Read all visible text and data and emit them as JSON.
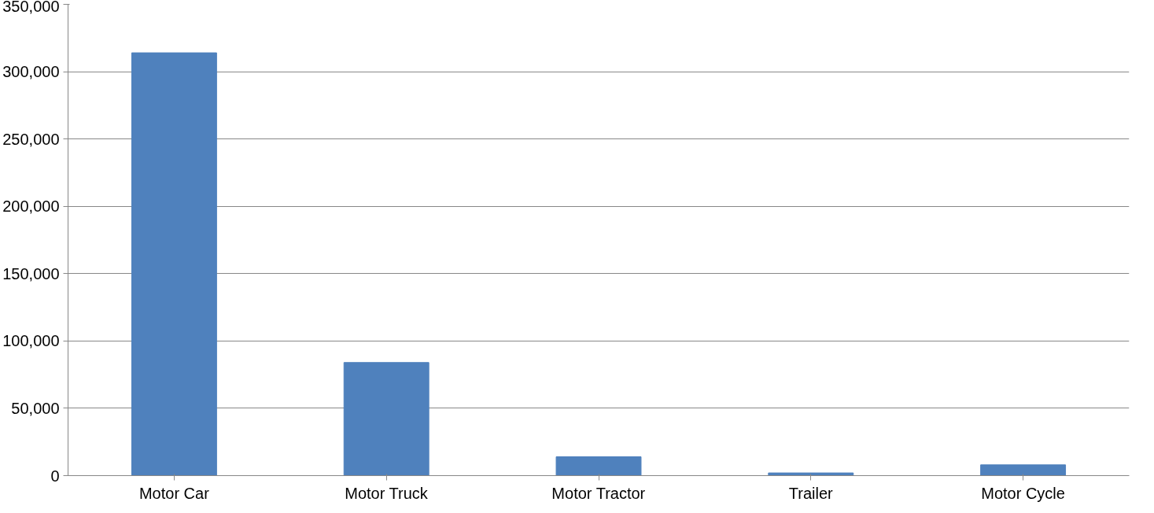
{
  "chart_data": {
    "type": "bar",
    "categories": [
      "Motor Car",
      "Motor Truck",
      "Motor Tractor",
      "Trailer",
      "Motor Cycle"
    ],
    "values": [
      314000,
      84000,
      14000,
      2000,
      8000
    ],
    "color": "#4f81bd",
    "ylim": [
      0,
      350000
    ],
    "yticks": [
      {
        "value": 0,
        "label": "0"
      },
      {
        "value": 50000,
        "label": "50,000"
      },
      {
        "value": 100000,
        "label": "100,000"
      },
      {
        "value": 150000,
        "label": "150,000"
      },
      {
        "value": 200000,
        "label": "200,000"
      },
      {
        "value": 250000,
        "label": "250,000"
      },
      {
        "value": 300000,
        "label": "300,000"
      },
      {
        "value": 350000,
        "label": "350,000"
      }
    ],
    "grid": "y"
  }
}
